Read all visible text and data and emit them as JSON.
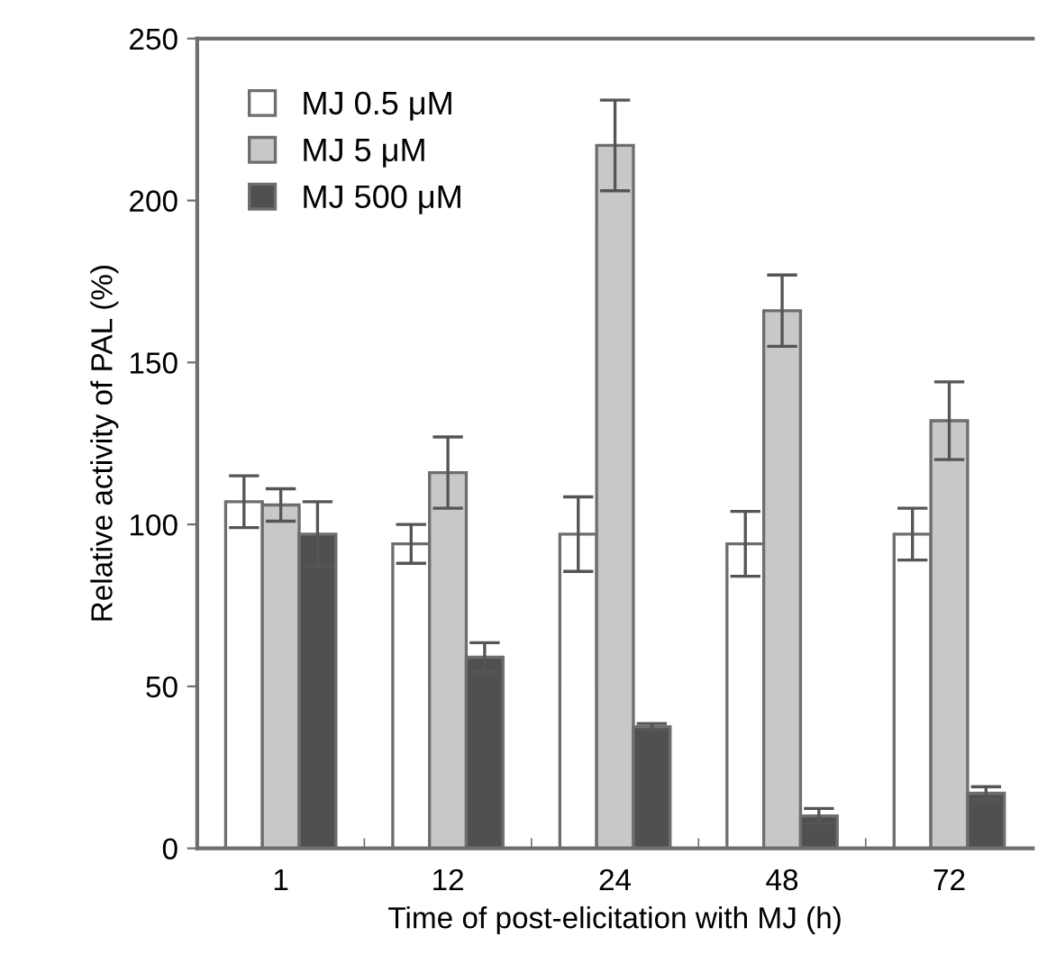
{
  "chart_data": {
    "type": "bar",
    "xlabel": "Time of post-elicitation with MJ (h)",
    "ylabel": "Relative activity of PAL (%)",
    "categories": [
      "1",
      "12",
      "24",
      "48",
      "72"
    ],
    "series": [
      {
        "name": "MJ 0.5 μM",
        "color": "#ffffff",
        "values": [
          107,
          94,
          97,
          94,
          97
        ],
        "errors": [
          8,
          6,
          11.5,
          10,
          8
        ]
      },
      {
        "name": "MJ 5 μM",
        "color": "#c8c8ca",
        "values": [
          106,
          116,
          217,
          166,
          132
        ],
        "errors": [
          5,
          11,
          14,
          11,
          12
        ]
      },
      {
        "name": "MJ 500 μM",
        "color": "#505050",
        "values": [
          97,
          59,
          37.5,
          10,
          17
        ],
        "errors": [
          10,
          4.5,
          1,
          2.3,
          2
        ]
      }
    ],
    "ylim": [
      0,
      250
    ],
    "yticks": [
      0,
      50,
      100,
      150,
      200,
      250
    ],
    "grid": false,
    "legend": "top left"
  }
}
